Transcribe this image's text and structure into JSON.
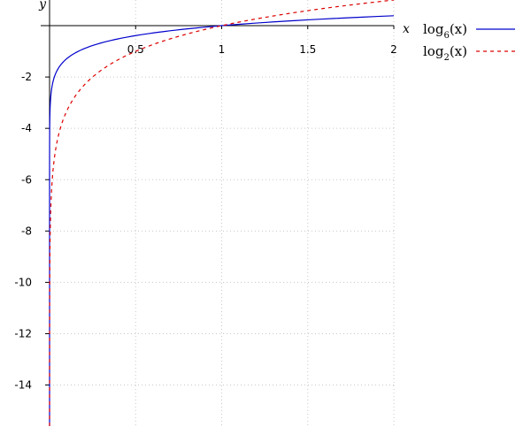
{
  "chart_data": {
    "type": "line",
    "xlabel": "x",
    "ylabel": "y",
    "xlim": [
      0,
      2
    ],
    "ylim": [
      -15.6,
      1
    ],
    "grid": true,
    "legend_position": "top-right",
    "x_ticks": [
      {
        "value": 0.5,
        "label": "0.5"
      },
      {
        "value": 1,
        "label": "1"
      },
      {
        "value": 1.5,
        "label": "1.5"
      },
      {
        "value": 2,
        "label": "2"
      }
    ],
    "y_ticks": [
      {
        "value": -2,
        "label": "-2"
      },
      {
        "value": -4,
        "label": "-4"
      },
      {
        "value": -6,
        "label": "-6"
      },
      {
        "value": -8,
        "label": "-8"
      },
      {
        "value": -10,
        "label": "-10"
      },
      {
        "value": -12,
        "label": "-12"
      },
      {
        "value": -14,
        "label": "-14"
      }
    ],
    "series": [
      {
        "name": "log6(x)",
        "legend_base": "log",
        "legend_sub": "6",
        "legend_arg": "(x)",
        "base": 6,
        "color": "#0000cc",
        "dash": "solid",
        "x": [
          0.001,
          0.01,
          0.05,
          0.1,
          0.25,
          0.5,
          0.75,
          1,
          1.25,
          1.5,
          1.75,
          2
        ],
        "y": [
          -3.86,
          -2.57,
          -1.67,
          -1.29,
          -0.77,
          -0.39,
          -0.16,
          0,
          0.12,
          0.23,
          0.31,
          0.39
        ]
      },
      {
        "name": "log2(x)",
        "legend_base": "log",
        "legend_sub": "2",
        "legend_arg": "(x)",
        "base": 2,
        "color": "#dd0000",
        "dash": "dashed",
        "x": [
          2e-05,
          0.001,
          0.01,
          0.05,
          0.1,
          0.25,
          0.5,
          0.75,
          1,
          1.25,
          1.5,
          1.75,
          2
        ],
        "y": [
          -15.6,
          -9.97,
          -6.64,
          -4.32,
          -3.32,
          -2,
          -1,
          -0.42,
          0,
          0.32,
          0.58,
          0.81,
          1
        ]
      }
    ]
  }
}
